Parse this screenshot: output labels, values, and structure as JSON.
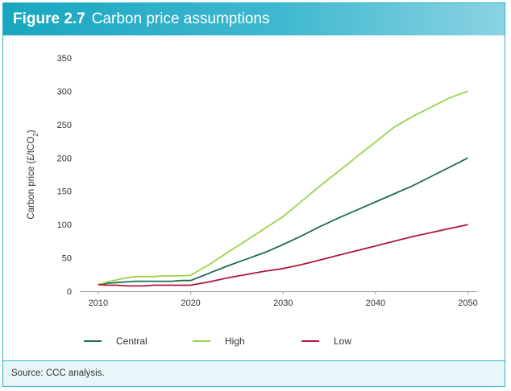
{
  "figure": {
    "number": "Figure 2.7",
    "title": "Carbon price assumptions"
  },
  "source": "Source: CCC analysis.",
  "colors": {
    "header": "#1aa6c0",
    "Central": "#1c6e55",
    "High": "#9cd24a",
    "Low": "#b0173b"
  },
  "chart_data": {
    "type": "line",
    "ylabel": "Carbon price (£/tCO2)",
    "xlabel": "",
    "xlim": [
      2008,
      2051
    ],
    "ylim": [
      0,
      350
    ],
    "xticks": [
      2010,
      2020,
      2030,
      2040,
      2050
    ],
    "yticks": [
      0,
      50,
      100,
      150,
      200,
      250,
      300,
      350
    ],
    "grid": false,
    "legend_position": "bottom",
    "series": [
      {
        "name": "Central",
        "x": [
          2010,
          2011,
          2012,
          2013,
          2014,
          2015,
          2016,
          2017,
          2018,
          2019,
          2020,
          2022,
          2024,
          2026,
          2028,
          2030,
          2032,
          2034,
          2036,
          2038,
          2040,
          2042,
          2044,
          2046,
          2048,
          2050
        ],
        "values": [
          10,
          12,
          13,
          14,
          15,
          15,
          15,
          15,
          15,
          16,
          16,
          27,
          38,
          48,
          58,
          70,
          83,
          97,
          110,
          122,
          134,
          146,
          158,
          172,
          186,
          200
        ]
      },
      {
        "name": "High",
        "x": [
          2010,
          2011,
          2012,
          2013,
          2014,
          2015,
          2016,
          2017,
          2018,
          2019,
          2020,
          2022,
          2024,
          2026,
          2028,
          2030,
          2032,
          2034,
          2036,
          2038,
          2040,
          2042,
          2044,
          2046,
          2048,
          2050
        ],
        "values": [
          10,
          14,
          17,
          20,
          22,
          22,
          22,
          23,
          23,
          23,
          24,
          40,
          58,
          76,
          94,
          112,
          135,
          158,
          180,
          202,
          224,
          246,
          262,
          276,
          290,
          300
        ]
      },
      {
        "name": "Low",
        "x": [
          2010,
          2011,
          2012,
          2013,
          2014,
          2015,
          2016,
          2017,
          2018,
          2019,
          2020,
          2022,
          2024,
          2026,
          2028,
          2030,
          2032,
          2034,
          2036,
          2038,
          2040,
          2042,
          2044,
          2046,
          2048,
          2050
        ],
        "values": [
          10,
          9,
          9,
          8,
          8,
          8,
          9,
          9,
          9,
          9,
          9,
          14,
          20,
          25,
          30,
          34,
          40,
          47,
          54,
          61,
          68,
          75,
          82,
          88,
          94,
          100
        ]
      }
    ]
  }
}
